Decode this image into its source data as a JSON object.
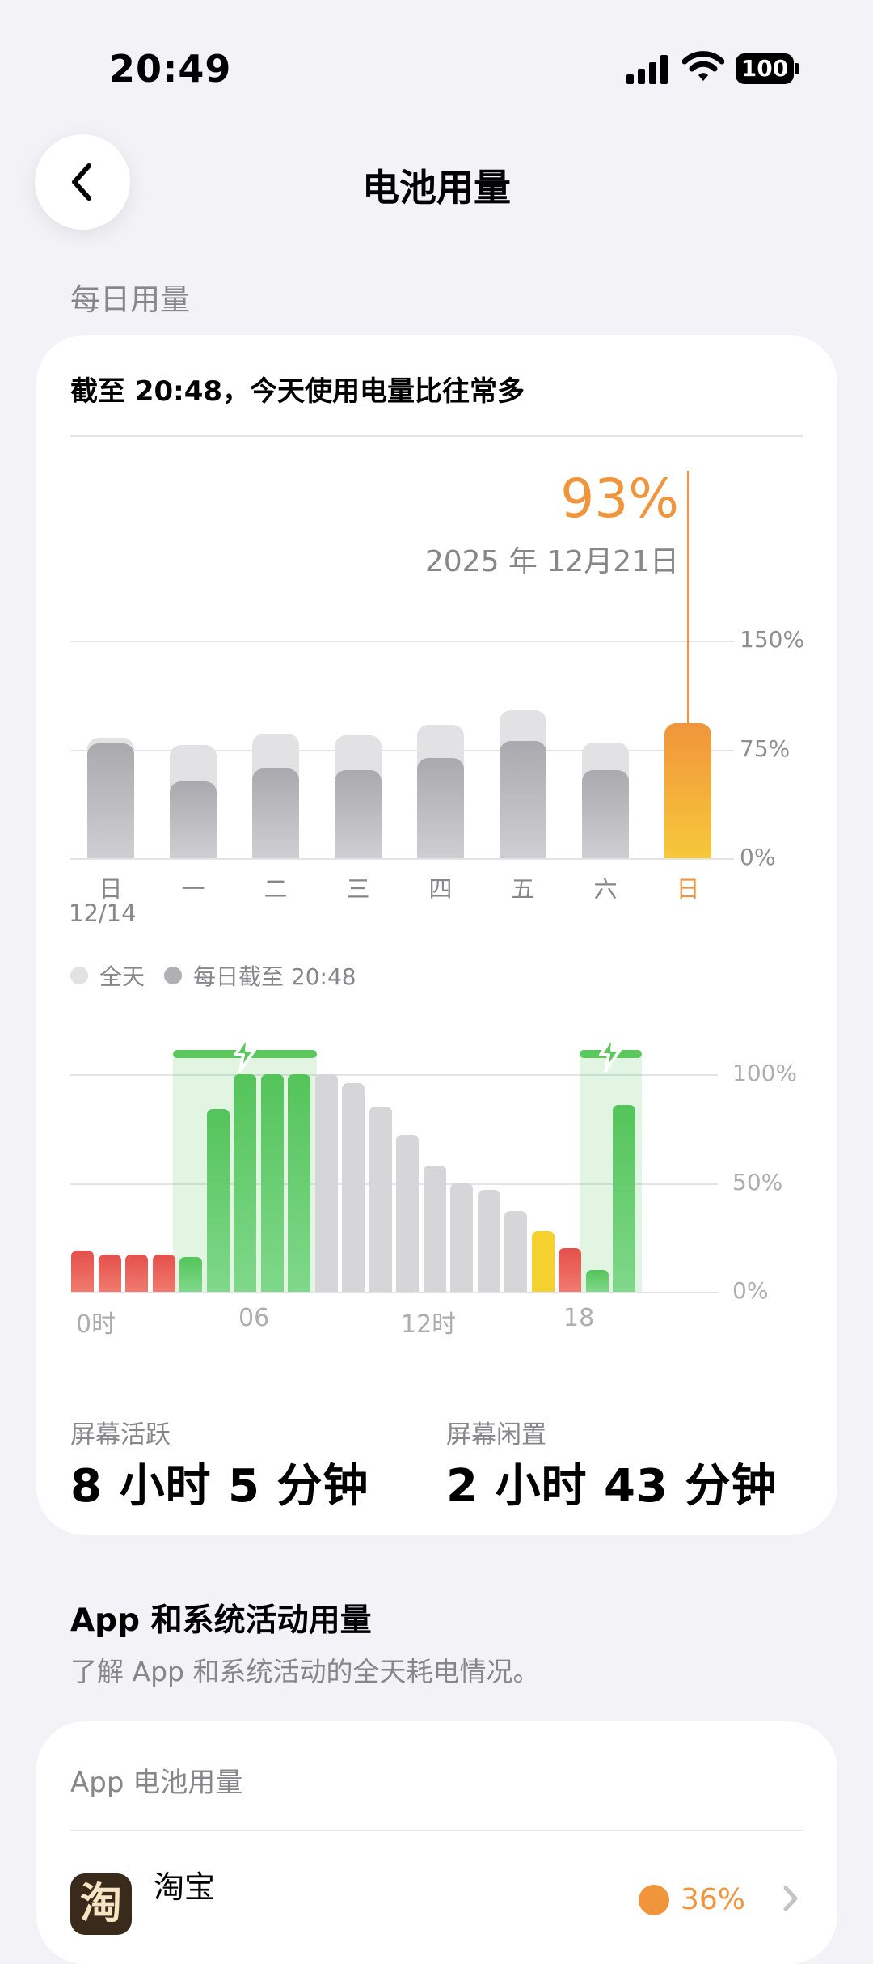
{
  "status_bar": {
    "time": "20:49",
    "battery": "100"
  },
  "nav": {
    "title": "电池用量"
  },
  "daily": {
    "section_title": "每日用量",
    "summary": "截至 20:48，今天使用电量比往常多",
    "selected": {
      "percent": "93%",
      "date": "2025 年 12月21日"
    },
    "legend": {
      "all_day": "全天",
      "until_now": "每日截至 20:48"
    }
  },
  "hourly": {
    "stats": {
      "screen_on_label": "屏幕活跃",
      "screen_on_value": "8 小时 5 分钟",
      "screen_off_label": "屏幕闲置",
      "screen_off_value": "2 小时 43 分钟"
    }
  },
  "apps": {
    "title": "App 和系统活动用量",
    "subtitle": "了解 App 和系统活动的全天耗电情况。",
    "card_title": "App 电池用量",
    "items": [
      {
        "name": "淘宝",
        "icon_char": "淘",
        "percent": "36%"
      }
    ]
  },
  "colors": {
    "orange": "#f0953b",
    "green": "#5ac85d",
    "red": "#e8514c",
    "yellow": "#f5d130",
    "gray_bar": "#b0b0b5",
    "gray_light": "#e2e2e4"
  },
  "chart_data": [
    {
      "type": "bar",
      "categories": [
        "日",
        "一",
        "二",
        "三",
        "四",
        "五",
        "六",
        "日"
      ],
      "x_sublabels": [
        "12/14",
        "",
        "",
        "",
        "",
        "",
        "",
        ""
      ],
      "ytick_labels": [
        "0%",
        "75%",
        "150%"
      ],
      "ylim": [
        0,
        150
      ],
      "series": [
        {
          "name": "全天",
          "values": [
            83,
            78,
            86,
            85,
            92,
            102,
            80,
            93
          ]
        },
        {
          "name": "每日截至 20:48",
          "values": [
            79,
            53,
            62,
            61,
            69,
            81,
            61,
            93
          ]
        }
      ],
      "highlight_index": 7
    },
    {
      "type": "bar",
      "x_tick_labels": [
        {
          "label": "0时",
          "hour": 0
        },
        {
          "label": "06",
          "hour": 6
        },
        {
          "label": "12时",
          "hour": 12
        },
        {
          "label": "18",
          "hour": 18
        }
      ],
      "ytick_labels": [
        "0%",
        "50%",
        "100%"
      ],
      "ylim": [
        0,
        100
      ],
      "hours": [
        0,
        1,
        2,
        3,
        4,
        5,
        6,
        7,
        8,
        9,
        10,
        11,
        12,
        13,
        14,
        15,
        16,
        17,
        18,
        19,
        20
      ],
      "values": [
        19,
        17,
        17,
        17,
        16,
        84,
        100,
        100,
        100,
        100,
        96,
        85,
        72,
        58,
        50,
        47,
        37,
        28,
        20,
        10,
        86
      ],
      "states": [
        "red",
        "red",
        "red",
        "red",
        "green",
        "green",
        "green",
        "green",
        "green",
        "gray",
        "gray",
        "gray",
        "gray",
        "gray",
        "gray",
        "gray",
        "gray",
        "yellow",
        "red",
        "green",
        "green"
      ],
      "charging_ranges": [
        [
          4,
          8
        ],
        [
          19,
          20
        ]
      ]
    }
  ]
}
